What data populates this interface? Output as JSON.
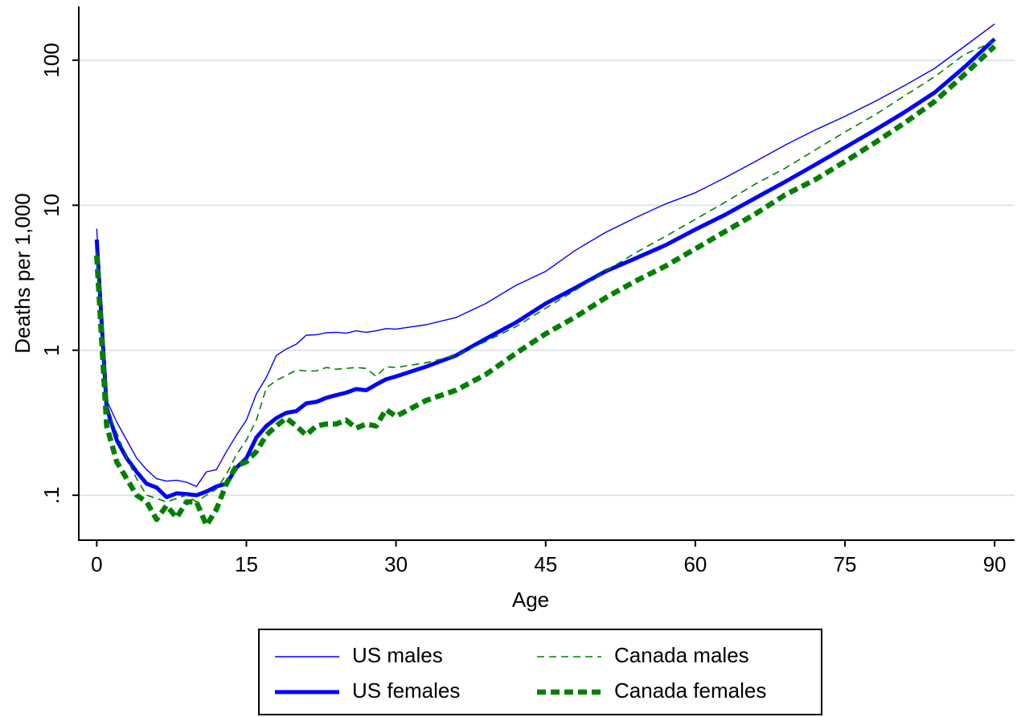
{
  "chart_data": {
    "type": "line",
    "x_label": "Age",
    "y_label": "Deaths per 1,000",
    "x": [
      0,
      1,
      2,
      3,
      4,
      5,
      6,
      7,
      8,
      9,
      10,
      11,
      12,
      13,
      14,
      15,
      16,
      17,
      18,
      19,
      20,
      21,
      22,
      23,
      24,
      25,
      26,
      27,
      28,
      29,
      30,
      33,
      36,
      39,
      42,
      45,
      48,
      51,
      54,
      57,
      60,
      63,
      66,
      69,
      72,
      75,
      78,
      81,
      84,
      87,
      90
    ],
    "series": [
      {
        "name": "US males",
        "color": "#0000ff",
        "values": [
          6.9,
          0.45,
          0.32,
          0.24,
          0.18,
          0.15,
          0.13,
          0.125,
          0.127,
          0.123,
          0.115,
          0.145,
          0.15,
          0.2,
          0.26,
          0.33,
          0.5,
          0.65,
          0.92,
          1.02,
          1.1,
          1.27,
          1.28,
          1.32,
          1.33,
          1.31,
          1.36,
          1.33,
          1.36,
          1.41,
          1.4,
          1.5,
          1.68,
          2.1,
          2.8,
          3.5,
          4.9,
          6.5,
          8.2,
          10.2,
          12.2,
          15.5,
          20,
          26,
          33,
          41,
          52,
          67,
          88,
          125,
          178
        ]
      },
      {
        "name": "US females",
        "color": "#0000ff",
        "values": [
          5.8,
          0.4,
          0.24,
          0.18,
          0.145,
          0.12,
          0.113,
          0.097,
          0.103,
          0.102,
          0.1,
          0.106,
          0.115,
          0.12,
          0.155,
          0.18,
          0.25,
          0.3,
          0.34,
          0.37,
          0.38,
          0.43,
          0.44,
          0.47,
          0.49,
          0.51,
          0.54,
          0.53,
          0.58,
          0.63,
          0.66,
          0.77,
          0.92,
          1.2,
          1.55,
          2.1,
          2.7,
          3.5,
          4.3,
          5.3,
          6.8,
          8.6,
          11.2,
          14.5,
          19,
          25,
          33,
          44,
          60,
          90,
          140
        ]
      },
      {
        "name": "Canada males",
        "color": "#008000",
        "values": [
          4.8,
          0.4,
          0.27,
          0.18,
          0.13,
          0.1,
          0.095,
          0.09,
          0.095,
          0.1,
          0.09,
          0.1,
          0.11,
          0.14,
          0.19,
          0.24,
          0.33,
          0.55,
          0.62,
          0.67,
          0.73,
          0.72,
          0.72,
          0.76,
          0.74,
          0.75,
          0.76,
          0.75,
          0.66,
          0.77,
          0.76,
          0.82,
          0.92,
          1.15,
          1.45,
          1.95,
          2.6,
          3.5,
          4.7,
          6.1,
          8,
          10.5,
          14,
          18,
          24,
          32,
          42,
          57,
          77,
          110,
          135
        ]
      },
      {
        "name": "Canada females",
        "color": "#008000",
        "values": [
          4.5,
          0.3,
          0.17,
          0.13,
          0.1,
          0.09,
          0.068,
          0.085,
          0.07,
          0.09,
          0.09,
          0.062,
          0.08,
          0.12,
          0.16,
          0.17,
          0.2,
          0.26,
          0.3,
          0.34,
          0.3,
          0.26,
          0.3,
          0.31,
          0.31,
          0.33,
          0.29,
          0.31,
          0.3,
          0.39,
          0.35,
          0.45,
          0.53,
          0.68,
          0.95,
          1.3,
          1.7,
          2.3,
          3,
          3.8,
          5,
          6.6,
          8.7,
          11.8,
          15,
          20,
          27,
          37,
          52,
          80,
          125
        ]
      }
    ],
    "xlim": [
      -1.8,
      92
    ],
    "xticks": [
      0,
      15,
      30,
      45,
      60,
      75,
      90
    ],
    "ylim": [
      0.049,
      235
    ],
    "y_scale": "log",
    "yticks": [
      {
        "value": 0.1,
        "label": ".1"
      },
      1,
      10,
      100
    ],
    "grid": true,
    "legend": "bottom"
  }
}
